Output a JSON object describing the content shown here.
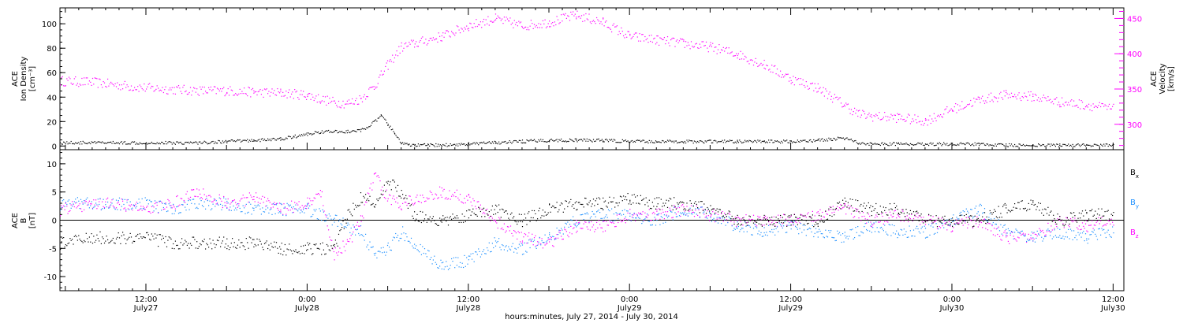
{
  "figure": {
    "xaxis_title": "hours:minutes, July 27, 2014 - July 30, 2014",
    "tick_times": [
      "12:00",
      "0:00",
      "12:00",
      "0:00",
      "12:00",
      "0:00",
      "12:00"
    ],
    "tick_dates": [
      "July27",
      "July28",
      "July28",
      "July29",
      "July29",
      "July30",
      "July30"
    ]
  },
  "chart_data": [
    {
      "type": "scatter",
      "panel": "top",
      "x_units": "hours from 2014-07-27 00:00",
      "xlim": [
        5.6,
        84.8
      ],
      "xticks_hours": [
        12,
        24,
        36,
        48,
        60,
        72,
        84
      ],
      "left_axis": {
        "label_lines": [
          "ACE",
          "Ion Density",
          "[cm⁻³]"
        ],
        "ylim": [
          -3,
          113
        ],
        "ticks": [
          0,
          20,
          40,
          60,
          80,
          100
        ]
      },
      "right_axis": {
        "label_lines": [
          "ACE",
          "Velocity",
          "[km/s]"
        ],
        "ylim": [
          264,
          465
        ],
        "ticks": [
          300,
          350,
          400,
          450
        ],
        "color": "#ff00ff"
      },
      "series": [
        {
          "axis": "left",
          "color": "#000000",
          "x": [
            5.6,
            8,
            10,
            12,
            14,
            16,
            18,
            20,
            22,
            23,
            24,
            25,
            26,
            27,
            28,
            29,
            29.5,
            30,
            30.5,
            31,
            31.5,
            32,
            33,
            34,
            36,
            38,
            40,
            42,
            44,
            46,
            48,
            50,
            52,
            54,
            56,
            58,
            60,
            62,
            63,
            64,
            65,
            66,
            68,
            70,
            72,
            74,
            76,
            78,
            80,
            82,
            84
          ],
          "y": [
            3,
            3,
            3,
            3,
            3,
            3,
            4,
            5,
            6,
            8,
            10,
            12,
            12,
            12,
            13,
            20,
            25,
            18,
            10,
            3,
            1,
            1,
            1,
            1,
            2,
            3,
            4,
            5,
            5,
            5,
            4,
            4,
            4,
            4,
            4,
            4,
            4,
            5,
            6,
            7,
            3,
            2,
            2,
            2,
            2,
            2,
            1,
            1,
            1,
            1,
            1
          ]
        },
        {
          "axis": "right",
          "color": "#ff00ff",
          "x": [
            5.6,
            8,
            10,
            12,
            14,
            16,
            18,
            20,
            22,
            24,
            25,
            26,
            27,
            28,
            29,
            30,
            31,
            32,
            34,
            36,
            38,
            39,
            40,
            42,
            44,
            46,
            48,
            50,
            52,
            54,
            56,
            58,
            60,
            62,
            63,
            64,
            65,
            66,
            68,
            70,
            72,
            74,
            76,
            78,
            80,
            82,
            84
          ],
          "y": [
            362,
            360,
            356,
            352,
            350,
            348,
            348,
            346,
            345,
            342,
            336,
            332,
            330,
            337,
            355,
            385,
            410,
            415,
            425,
            440,
            450,
            445,
            440,
            445,
            455,
            445,
            425,
            420,
            415,
            410,
            400,
            385,
            365,
            352,
            340,
            328,
            315,
            312,
            310,
            305,
            322,
            335,
            342,
            340,
            332,
            328,
            322
          ]
        }
      ]
    },
    {
      "type": "scatter",
      "panel": "bottom",
      "x_units": "hours from 2014-07-27 00:00",
      "xlim": [
        5.6,
        84.8
      ],
      "xticks_hours": [
        12,
        24,
        36,
        48,
        60,
        72,
        84
      ],
      "left_axis": {
        "label_lines": [
          "ACE",
          "B",
          "[nT]"
        ],
        "ylim": [
          -12.5,
          12.5
        ],
        "ticks": [
          -10,
          -5,
          0,
          5,
          10
        ]
      },
      "zero_line": 0,
      "series": [
        {
          "name": "B",
          "subscript": "x",
          "color": "#000000",
          "x": [
            5.6,
            8,
            10,
            12,
            14,
            16,
            18,
            20,
            22,
            24,
            26,
            27,
            28,
            29,
            30,
            31,
            32,
            34,
            36,
            38,
            40,
            42,
            44,
            46,
            48,
            50,
            52,
            54,
            56,
            58,
            60,
            62,
            64,
            66,
            68,
            70,
            72,
            74,
            76,
            78,
            80,
            82,
            84
          ],
          "y": [
            -4,
            -3,
            -3,
            -3,
            -4,
            -4,
            -4,
            -4,
            -5,
            -5,
            -5,
            1,
            4,
            3,
            7,
            5,
            1,
            0,
            1,
            2,
            0,
            2,
            3,
            3,
            4,
            3,
            3,
            2,
            0,
            0,
            0,
            0,
            3,
            2,
            2,
            0,
            0,
            0,
            2,
            3,
            0,
            1,
            1
          ]
        },
        {
          "name": "B",
          "subscript": "y",
          "color": "#1e90ff",
          "x": [
            5.6,
            8,
            10,
            12,
            14,
            16,
            18,
            20,
            22,
            24,
            26,
            27,
            28,
            29,
            30,
            31,
            32,
            34,
            36,
            38,
            40,
            42,
            44,
            46,
            48,
            50,
            52,
            54,
            56,
            58,
            60,
            62,
            64,
            66,
            68,
            70,
            72,
            74,
            76,
            78,
            80,
            82,
            84
          ],
          "y": [
            3,
            3,
            3,
            3,
            2,
            3,
            3,
            2,
            2,
            2,
            0,
            -1,
            -2,
            -6,
            -5,
            -2,
            -4,
            -8,
            -7,
            -4,
            -5,
            -3,
            0,
            1,
            1,
            0,
            2,
            1,
            -1,
            -2,
            -1,
            -2,
            -3,
            -1,
            -2,
            -2,
            0,
            2,
            -2,
            -3,
            -2,
            -3,
            -2
          ]
        },
        {
          "name": "B",
          "subscript": "z",
          "color": "#ff00ff",
          "x": [
            5.6,
            8,
            10,
            12,
            14,
            16,
            18,
            20,
            22,
            24,
            25,
            26,
            27,
            28,
            29,
            30,
            31,
            32,
            34,
            36,
            38,
            40,
            42,
            44,
            46,
            48,
            50,
            52,
            54,
            56,
            58,
            60,
            62,
            64,
            66,
            68,
            70,
            72,
            74,
            76,
            78,
            80,
            82,
            84
          ],
          "y": [
            2,
            3,
            3,
            2,
            3,
            5,
            3,
            4,
            2,
            3,
            5,
            -6,
            -4,
            0,
            8,
            4,
            3,
            4,
            5,
            4,
            0,
            -3,
            -4,
            -1,
            -1,
            1,
            1,
            2,
            1,
            0,
            0,
            0,
            1,
            2,
            0,
            1,
            0,
            -1,
            0,
            -3,
            -3,
            0,
            -1,
            0
          ]
        }
      ]
    }
  ]
}
